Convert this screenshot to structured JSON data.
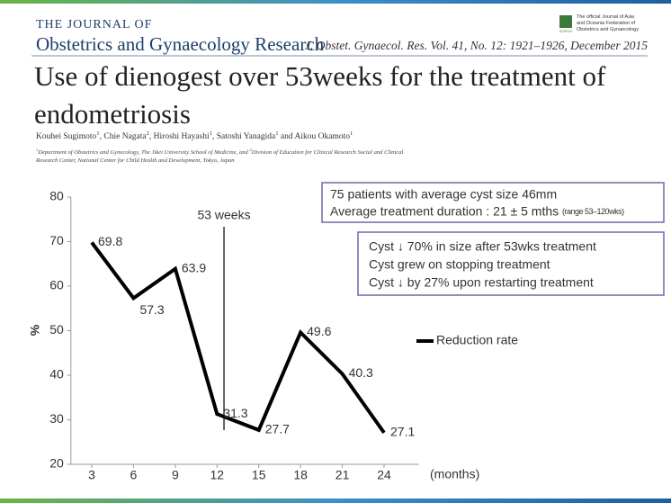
{
  "header": {
    "journal_line1": "THE JOURNAL OF",
    "journal_line2": "Obstetrics and Gynaecology Research",
    "citation": "J. Obstet. Gynaecol. Res. Vol. 41, No. 12: 1921–1926, December 2015",
    "logo_lines": [
      "The official Journal of Asia",
      "and Oceania Federation of",
      "Obstetrics and Gynaecology"
    ],
    "logo_badge": "AOFOG"
  },
  "article": {
    "title": "Use of dienogest over 53weeks for the treatment of endometriosis",
    "author_parts": [
      "Kouhei Sugimoto",
      "1",
      ", Chie Nagata",
      "2",
      ", Hiroshi Hayashi",
      "1",
      ", Satoshi Yanagida",
      "1",
      " and Aikou Okamoto",
      "1"
    ],
    "affiliation_parts": [
      "",
      "1",
      "Department of Obstetrics and Gynecology, The Jikei University School of Medicine, and ",
      "2",
      "Division of Education for Clinical Research Social and Clinical Research Center, National Center for Child Health and Development, Tokyo, Japan"
    ]
  },
  "chart_data": {
    "type": "line",
    "x": [
      3,
      6,
      9,
      12,
      15,
      18,
      21,
      24
    ],
    "series": [
      {
        "name": "Reduction rate",
        "color": "#000000",
        "values": [
          69.8,
          57.3,
          63.9,
          31.3,
          27.7,
          49.6,
          40.3,
          27.1
        ]
      }
    ],
    "xlim": [
      1.5,
      26.5
    ],
    "xticks": [
      3,
      6,
      9,
      12,
      15,
      18,
      21,
      24
    ],
    "ylim": [
      20,
      80
    ],
    "yticks": [
      20,
      30,
      40,
      50,
      60,
      70,
      80
    ],
    "y_label": "%",
    "x_label": "(months)",
    "grid": false,
    "legend": "right",
    "annotations": [
      {
        "x": 12.5,
        "label": "53 weeks"
      }
    ],
    "box1": {
      "lines": [
        "75 patients with average cyst size 46mm",
        "Average treatment duration : 21 ± 5 mths"
      ],
      "note": "(range 53–120wks)"
    },
    "box2": {
      "lines": [
        "Cyst ↓ 70% in size after 53wks treatment",
        "Cyst grew on stopping treatment",
        "Cyst ↓ by 27% upon restarting treatment"
      ]
    }
  }
}
